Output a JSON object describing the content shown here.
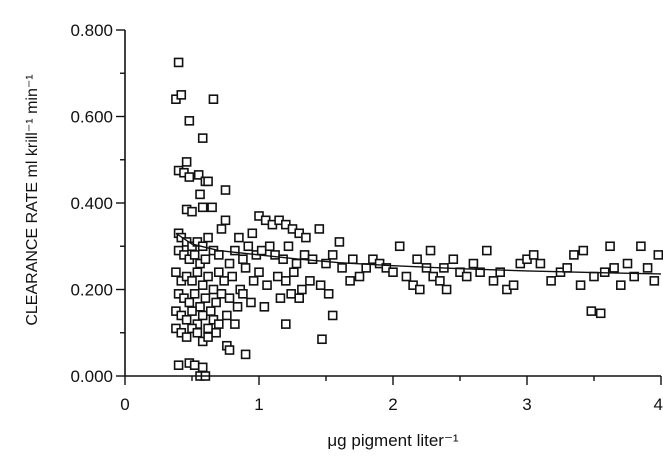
{
  "chart_data": {
    "type": "scatter",
    "xlabel": "μg pigment liter⁻¹",
    "ylabel": "CLEARANCE RATE  ml  krill⁻¹  min⁻¹",
    "xlim": [
      0,
      4
    ],
    "ylim": [
      0,
      0.8
    ],
    "xticks": [
      0,
      1,
      2,
      3,
      4
    ],
    "xtick_labels": [
      "0",
      "1",
      "2",
      "3",
      "4"
    ],
    "yticks": [
      0,
      0.2,
      0.4,
      0.6,
      0.8
    ],
    "ytick_labels": [
      "0.000",
      "0.200",
      "0.400",
      "0.600",
      "0.800"
    ],
    "grid": false,
    "marker": "square-open",
    "series": [
      {
        "points": [
          [
            0.4,
            0.725
          ],
          [
            0.38,
            0.64
          ],
          [
            0.42,
            0.65
          ],
          [
            0.66,
            0.64
          ],
          [
            0.48,
            0.59
          ],
          [
            0.58,
            0.55
          ],
          [
            0.4,
            0.475
          ],
          [
            0.46,
            0.495
          ],
          [
            0.44,
            0.47
          ],
          [
            0.55,
            0.465
          ],
          [
            0.6,
            0.45
          ],
          [
            0.62,
            0.45
          ],
          [
            0.48,
            0.46
          ],
          [
            0.56,
            0.42
          ],
          [
            0.75,
            0.43
          ],
          [
            0.46,
            0.385
          ],
          [
            0.5,
            0.38
          ],
          [
            0.58,
            0.39
          ],
          [
            0.65,
            0.39
          ],
          [
            0.75,
            0.36
          ],
          [
            0.4,
            0.33
          ],
          [
            0.42,
            0.32
          ],
          [
            0.46,
            0.31
          ],
          [
            0.5,
            0.3
          ],
          [
            0.54,
            0.31
          ],
          [
            0.58,
            0.3
          ],
          [
            0.62,
            0.32
          ],
          [
            0.72,
            0.34
          ],
          [
            0.85,
            0.32
          ],
          [
            0.95,
            0.33
          ],
          [
            1.0,
            0.37
          ],
          [
            1.05,
            0.36
          ],
          [
            1.1,
            0.35
          ],
          [
            1.15,
            0.36
          ],
          [
            1.2,
            0.35
          ],
          [
            1.25,
            0.34
          ],
          [
            1.3,
            0.33
          ],
          [
            1.35,
            0.32
          ],
          [
            1.45,
            0.34
          ],
          [
            1.6,
            0.31
          ],
          [
            0.4,
            0.29
          ],
          [
            0.44,
            0.28
          ],
          [
            0.48,
            0.27
          ],
          [
            0.52,
            0.28
          ],
          [
            0.56,
            0.26
          ],
          [
            0.6,
            0.27
          ],
          [
            0.66,
            0.29
          ],
          [
            0.7,
            0.28
          ],
          [
            0.78,
            0.26
          ],
          [
            0.82,
            0.29
          ],
          [
            0.88,
            0.27
          ],
          [
            0.92,
            0.3
          ],
          [
            0.98,
            0.28
          ],
          [
            1.02,
            0.29
          ],
          [
            1.08,
            0.3
          ],
          [
            1.12,
            0.28
          ],
          [
            1.18,
            0.27
          ],
          [
            1.22,
            0.3
          ],
          [
            1.28,
            0.26
          ],
          [
            1.34,
            0.28
          ],
          [
            1.4,
            0.27
          ],
          [
            1.5,
            0.26
          ],
          [
            1.55,
            0.28
          ],
          [
            1.7,
            0.27
          ],
          [
            1.8,
            0.25
          ],
          [
            0.38,
            0.24
          ],
          [
            0.42,
            0.22
          ],
          [
            0.46,
            0.23
          ],
          [
            0.5,
            0.22
          ],
          [
            0.54,
            0.24
          ],
          [
            0.58,
            0.21
          ],
          [
            0.62,
            0.23
          ],
          [
            0.66,
            0.2
          ],
          [
            0.7,
            0.24
          ],
          [
            0.74,
            0.22
          ],
          [
            0.8,
            0.23
          ],
          [
            0.86,
            0.2
          ],
          [
            0.9,
            0.25
          ],
          [
            0.96,
            0.22
          ],
          [
            1.0,
            0.24
          ],
          [
            1.06,
            0.21
          ],
          [
            1.14,
            0.23
          ],
          [
            1.2,
            0.22
          ],
          [
            1.26,
            0.24
          ],
          [
            1.32,
            0.2
          ],
          [
            1.38,
            0.22
          ],
          [
            1.46,
            0.21
          ],
          [
            1.52,
            0.19
          ],
          [
            0.4,
            0.19
          ],
          [
            0.44,
            0.18
          ],
          [
            0.48,
            0.17
          ],
          [
            0.52,
            0.19
          ],
          [
            0.56,
            0.16
          ],
          [
            0.6,
            0.18
          ],
          [
            0.64,
            0.15
          ],
          [
            0.68,
            0.17
          ],
          [
            0.72,
            0.19
          ],
          [
            0.78,
            0.18
          ],
          [
            0.84,
            0.16
          ],
          [
            0.88,
            0.19
          ],
          [
            0.94,
            0.17
          ],
          [
            1.04,
            0.16
          ],
          [
            1.16,
            0.18
          ],
          [
            1.24,
            0.19
          ],
          [
            1.3,
            0.18
          ],
          [
            0.38,
            0.15
          ],
          [
            0.42,
            0.14
          ],
          [
            0.46,
            0.13
          ],
          [
            0.5,
            0.15
          ],
          [
            0.54,
            0.12
          ],
          [
            0.58,
            0.14
          ],
          [
            0.62,
            0.11
          ],
          [
            0.66,
            0.13
          ],
          [
            0.7,
            0.12
          ],
          [
            0.76,
            0.14
          ],
          [
            0.82,
            0.12
          ],
          [
            1.2,
            0.12
          ],
          [
            1.55,
            0.14
          ],
          [
            0.38,
            0.11
          ],
          [
            0.42,
            0.1
          ],
          [
            0.46,
            0.09
          ],
          [
            0.5,
            0.11
          ],
          [
            0.54,
            0.1
          ],
          [
            0.58,
            0.08
          ],
          [
            0.62,
            0.09
          ],
          [
            0.68,
            0.1
          ],
          [
            0.76,
            0.07
          ],
          [
            0.78,
            0.06
          ],
          [
            0.9,
            0.05
          ],
          [
            1.47,
            0.085
          ],
          [
            0.4,
            0.025
          ],
          [
            0.48,
            0.03
          ],
          [
            0.52,
            0.025
          ],
          [
            0.58,
            0.02
          ],
          [
            0.56,
            0.0
          ],
          [
            0.6,
            0.0
          ],
          [
            1.85,
            0.27
          ],
          [
            1.9,
            0.26
          ],
          [
            1.95,
            0.25
          ],
          [
            2.0,
            0.24
          ],
          [
            2.05,
            0.3
          ],
          [
            2.1,
            0.23
          ],
          [
            2.15,
            0.21
          ],
          [
            2.18,
            0.27
          ],
          [
            2.2,
            0.2
          ],
          [
            2.25,
            0.25
          ],
          [
            2.28,
            0.29
          ],
          [
            2.3,
            0.23
          ],
          [
            2.35,
            0.22
          ],
          [
            2.38,
            0.25
          ],
          [
            2.4,
            0.2
          ],
          [
            2.45,
            0.27
          ],
          [
            2.5,
            0.24
          ],
          [
            2.55,
            0.23
          ],
          [
            2.6,
            0.26
          ],
          [
            2.65,
            0.24
          ],
          [
            2.7,
            0.29
          ],
          [
            2.75,
            0.22
          ],
          [
            2.8,
            0.24
          ],
          [
            2.85,
            0.2
          ],
          [
            2.9,
            0.21
          ],
          [
            2.95,
            0.26
          ],
          [
            3.0,
            0.27
          ],
          [
            3.05,
            0.28
          ],
          [
            3.1,
            0.26
          ],
          [
            3.18,
            0.22
          ],
          [
            3.25,
            0.24
          ],
          [
            3.3,
            0.25
          ],
          [
            3.35,
            0.28
          ],
          [
            3.4,
            0.21
          ],
          [
            3.42,
            0.29
          ],
          [
            3.48,
            0.15
          ],
          [
            3.5,
            0.23
          ],
          [
            3.55,
            0.145
          ],
          [
            3.58,
            0.24
          ],
          [
            3.62,
            0.3
          ],
          [
            3.65,
            0.25
          ],
          [
            3.7,
            0.21
          ],
          [
            3.75,
            0.26
          ],
          [
            3.8,
            0.23
          ],
          [
            3.85,
            0.3
          ],
          [
            3.9,
            0.25
          ],
          [
            3.95,
            0.22
          ],
          [
            3.98,
            0.28
          ],
          [
            1.62,
            0.25
          ],
          [
            1.75,
            0.23
          ],
          [
            1.68,
            0.22
          ]
        ]
      }
    ],
    "fit_curve": {
      "x": [
        0.38,
        0.5,
        0.7,
        1.0,
        1.3,
        1.6,
        2.0,
        2.5,
        3.0,
        3.5,
        4.0
      ],
      "y": [
        0.33,
        0.305,
        0.29,
        0.28,
        0.27,
        0.262,
        0.255,
        0.248,
        0.243,
        0.239,
        0.236
      ]
    }
  }
}
